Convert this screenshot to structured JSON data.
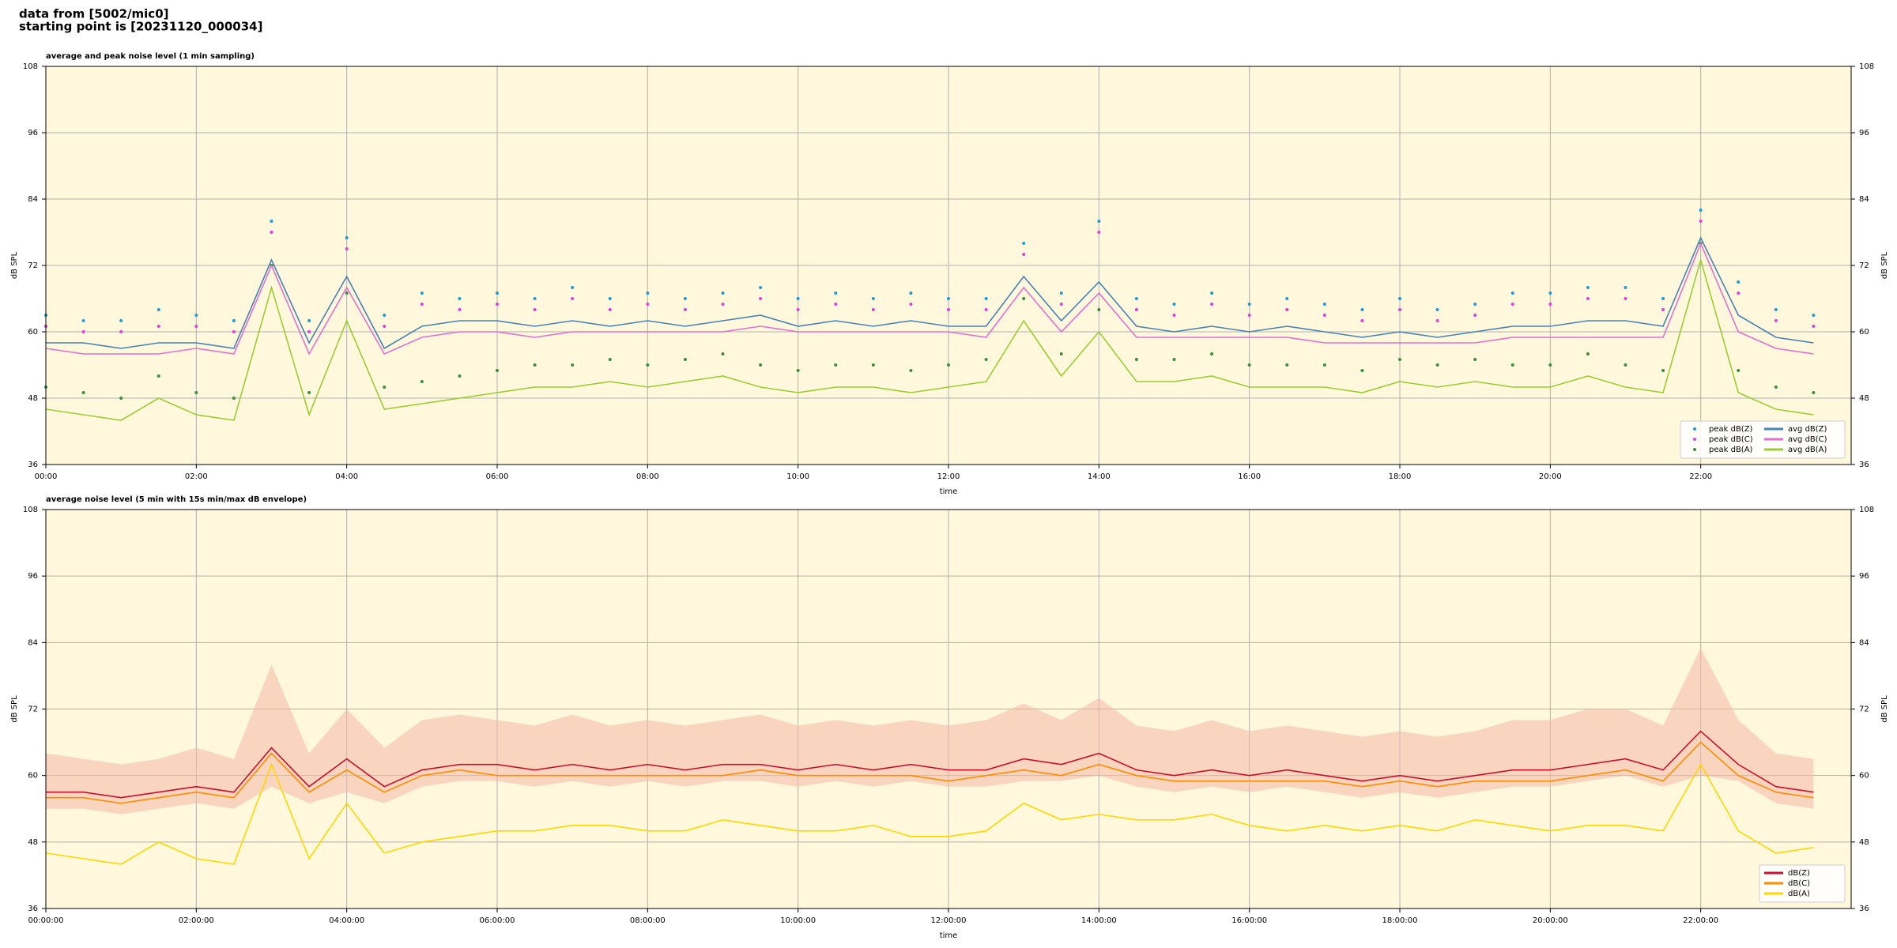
{
  "header": {
    "source": "data from [5002/mic0]",
    "start": "starting point is [20231120_000034]"
  },
  "chart_data": [
    {
      "type": "line",
      "title": "average and peak noise level (1 min sampling)",
      "xlabel": "time",
      "ylabel": "dB SPL",
      "x": [
        "00:00",
        "00:30",
        "01:00",
        "01:30",
        "02:00",
        "02:30",
        "03:00",
        "03:30",
        "04:00",
        "04:30",
        "05:00",
        "05:30",
        "06:00",
        "06:30",
        "07:00",
        "07:30",
        "08:00",
        "08:30",
        "09:00",
        "09:30",
        "10:00",
        "10:30",
        "11:00",
        "11:30",
        "12:00",
        "12:30",
        "13:00",
        "13:30",
        "14:00",
        "14:30",
        "15:00",
        "15:30",
        "16:00",
        "16:30",
        "17:00",
        "17:30",
        "18:00",
        "18:30",
        "19:00",
        "19:30",
        "20:00",
        "20:30",
        "21:00",
        "21:30",
        "22:00",
        "22:30",
        "23:00",
        "23:30"
      ],
      "xlim": [
        "00:00",
        "24:00"
      ],
      "xticks": [
        "00:00",
        "02:00",
        "04:00",
        "06:00",
        "08:00",
        "10:00",
        "12:00",
        "14:00",
        "16:00",
        "18:00",
        "20:00",
        "22:00"
      ],
      "ylim": [
        36,
        108
      ],
      "yticks": [
        36,
        48,
        60,
        72,
        84,
        96,
        108
      ],
      "grid": true,
      "legend": "lower right",
      "legend_columns": 2,
      "series": [
        {
          "name": "peak dB(Z)",
          "mark": "dot",
          "color": "#1f9bd6",
          "values": [
            63,
            62,
            62,
            64,
            63,
            62,
            80,
            62,
            77,
            63,
            67,
            66,
            67,
            66,
            68,
            66,
            67,
            66,
            67,
            68,
            66,
            67,
            66,
            67,
            66,
            66,
            76,
            67,
            80,
            66,
            65,
            67,
            65,
            66,
            65,
            64,
            66,
            64,
            65,
            67,
            67,
            68,
            68,
            66,
            82,
            69,
            64,
            63
          ]
        },
        {
          "name": "peak dB(C)",
          "mark": "dot",
          "color": "#e040e0",
          "values": [
            61,
            60,
            60,
            61,
            61,
            60,
            78,
            60,
            75,
            61,
            65,
            64,
            65,
            64,
            66,
            64,
            65,
            64,
            65,
            66,
            64,
            65,
            64,
            65,
            64,
            64,
            74,
            65,
            78,
            64,
            63,
            65,
            63,
            64,
            63,
            62,
            64,
            62,
            63,
            65,
            65,
            66,
            66,
            64,
            80,
            67,
            62,
            61
          ]
        },
        {
          "name": "peak dB(A)",
          "mark": "dot",
          "color": "#3a8f3a",
          "values": [
            50,
            49,
            48,
            52,
            49,
            48,
            72,
            49,
            67,
            50,
            51,
            52,
            53,
            54,
            54,
            55,
            54,
            55,
            56,
            54,
            53,
            54,
            54,
            53,
            54,
            55,
            66,
            56,
            64,
            55,
            55,
            56,
            54,
            54,
            54,
            53,
            55,
            54,
            55,
            54,
            54,
            56,
            54,
            53,
            76,
            53,
            50,
            49
          ]
        },
        {
          "name": "avg dB(Z)",
          "mark": "line",
          "color": "#4682b4",
          "values": [
            58,
            58,
            57,
            58,
            58,
            57,
            73,
            58,
            70,
            57,
            61,
            62,
            62,
            61,
            62,
            61,
            62,
            61,
            62,
            63,
            61,
            62,
            61,
            62,
            61,
            61,
            70,
            62,
            69,
            61,
            60,
            61,
            60,
            61,
            60,
            59,
            60,
            59,
            60,
            61,
            61,
            62,
            62,
            61,
            77,
            63,
            59,
            58
          ]
        },
        {
          "name": "avg dB(C)",
          "mark": "line",
          "color": "#e070d0",
          "values": [
            57,
            56,
            56,
            56,
            57,
            56,
            72,
            56,
            68,
            56,
            59,
            60,
            60,
            59,
            60,
            60,
            60,
            60,
            60,
            61,
            60,
            60,
            60,
            60,
            60,
            59,
            68,
            60,
            67,
            59,
            59,
            59,
            59,
            59,
            58,
            58,
            58,
            58,
            58,
            59,
            59,
            59,
            59,
            59,
            76,
            60,
            57,
            56
          ]
        },
        {
          "name": "avg dB(A)",
          "mark": "line",
          "color": "#9acd32",
          "values": [
            46,
            45,
            44,
            48,
            45,
            44,
            68,
            45,
            62,
            46,
            47,
            48,
            49,
            50,
            50,
            51,
            50,
            51,
            52,
            50,
            49,
            50,
            50,
            49,
            50,
            51,
            62,
            52,
            60,
            51,
            51,
            52,
            50,
            50,
            50,
            49,
            51,
            50,
            51,
            50,
            50,
            52,
            50,
            49,
            73,
            49,
            46,
            45
          ]
        }
      ]
    },
    {
      "type": "line",
      "title": "average noise level (5 min with 15s min/max dB envelope)",
      "xlabel": "time",
      "ylabel": "dB SPL",
      "x": [
        "00:00:00",
        "00:30:00",
        "01:00:00",
        "01:30:00",
        "02:00:00",
        "02:30:00",
        "03:00:00",
        "03:30:00",
        "04:00:00",
        "04:30:00",
        "05:00:00",
        "05:30:00",
        "06:00:00",
        "06:30:00",
        "07:00:00",
        "07:30:00",
        "08:00:00",
        "08:30:00",
        "09:00:00",
        "09:30:00",
        "10:00:00",
        "10:30:00",
        "11:00:00",
        "11:30:00",
        "12:00:00",
        "12:30:00",
        "13:00:00",
        "13:30:00",
        "14:00:00",
        "14:30:00",
        "15:00:00",
        "15:30:00",
        "16:00:00",
        "16:30:00",
        "17:00:00",
        "17:30:00",
        "18:00:00",
        "18:30:00",
        "19:00:00",
        "19:30:00",
        "20:00:00",
        "20:30:00",
        "21:00:00",
        "21:30:00",
        "22:00:00",
        "22:30:00",
        "23:00:00",
        "23:30:00"
      ],
      "xlim": [
        "00:00:00",
        "24:00:00"
      ],
      "xticks": [
        "00:00:00",
        "02:00:00",
        "04:00:00",
        "06:00:00",
        "08:00:00",
        "10:00:00",
        "12:00:00",
        "14:00:00",
        "16:00:00",
        "18:00:00",
        "20:00:00",
        "22:00:00"
      ],
      "ylim": [
        36,
        108
      ],
      "yticks": [
        36,
        48,
        60,
        72,
        84,
        96,
        108
      ],
      "grid": true,
      "legend": "lower right",
      "legend_columns": 1,
      "envelope": {
        "color": "#f4b8a8",
        "min": [
          54,
          54,
          53,
          54,
          55,
          54,
          58,
          55,
          57,
          55,
          58,
          59,
          59,
          58,
          59,
          58,
          59,
          58,
          59,
          59,
          58,
          59,
          58,
          59,
          58,
          58,
          59,
          59,
          60,
          58,
          57,
          58,
          57,
          58,
          57,
          56,
          57,
          56,
          57,
          58,
          58,
          59,
          60,
          58,
          60,
          59,
          55,
          54
        ],
        "max": [
          64,
          63,
          62,
          63,
          65,
          63,
          80,
          64,
          72,
          65,
          70,
          71,
          70,
          69,
          71,
          69,
          70,
          69,
          70,
          71,
          69,
          70,
          69,
          70,
          69,
          70,
          73,
          70,
          74,
          69,
          68,
          70,
          68,
          69,
          68,
          67,
          68,
          67,
          68,
          70,
          70,
          72,
          72,
          69,
          83,
          70,
          64,
          63
        ]
      },
      "series": [
        {
          "name": "dB(Z)",
          "mark": "line",
          "color": "#c8102e",
          "values": [
            57,
            57,
            56,
            57,
            58,
            57,
            65,
            58,
            63,
            58,
            61,
            62,
            62,
            61,
            62,
            61,
            62,
            61,
            62,
            62,
            61,
            62,
            61,
            62,
            61,
            61,
            63,
            62,
            64,
            61,
            60,
            61,
            60,
            61,
            60,
            59,
            60,
            59,
            60,
            61,
            61,
            62,
            63,
            61,
            68,
            62,
            58,
            57
          ]
        },
        {
          "name": "dB(C)",
          "mark": "line",
          "color": "#ff8c00",
          "values": [
            56,
            56,
            55,
            56,
            57,
            56,
            64,
            57,
            61,
            57,
            60,
            61,
            60,
            60,
            60,
            60,
            60,
            60,
            60,
            61,
            60,
            60,
            60,
            60,
            59,
            60,
            61,
            60,
            62,
            60,
            59,
            59,
            59,
            59,
            59,
            58,
            59,
            58,
            59,
            59,
            59,
            60,
            61,
            59,
            66,
            60,
            57,
            56
          ]
        },
        {
          "name": "dB(A)",
          "mark": "line",
          "color": "#ffd700",
          "values": [
            46,
            45,
            44,
            48,
            45,
            44,
            62,
            45,
            55,
            46,
            48,
            49,
            50,
            50,
            51,
            51,
            50,
            50,
            52,
            51,
            50,
            50,
            51,
            49,
            49,
            50,
            55,
            52,
            53,
            52,
            52,
            53,
            51,
            50,
            51,
            50,
            51,
            50,
            52,
            51,
            50,
            51,
            51,
            50,
            62,
            50,
            46,
            47
          ]
        }
      ]
    }
  ]
}
